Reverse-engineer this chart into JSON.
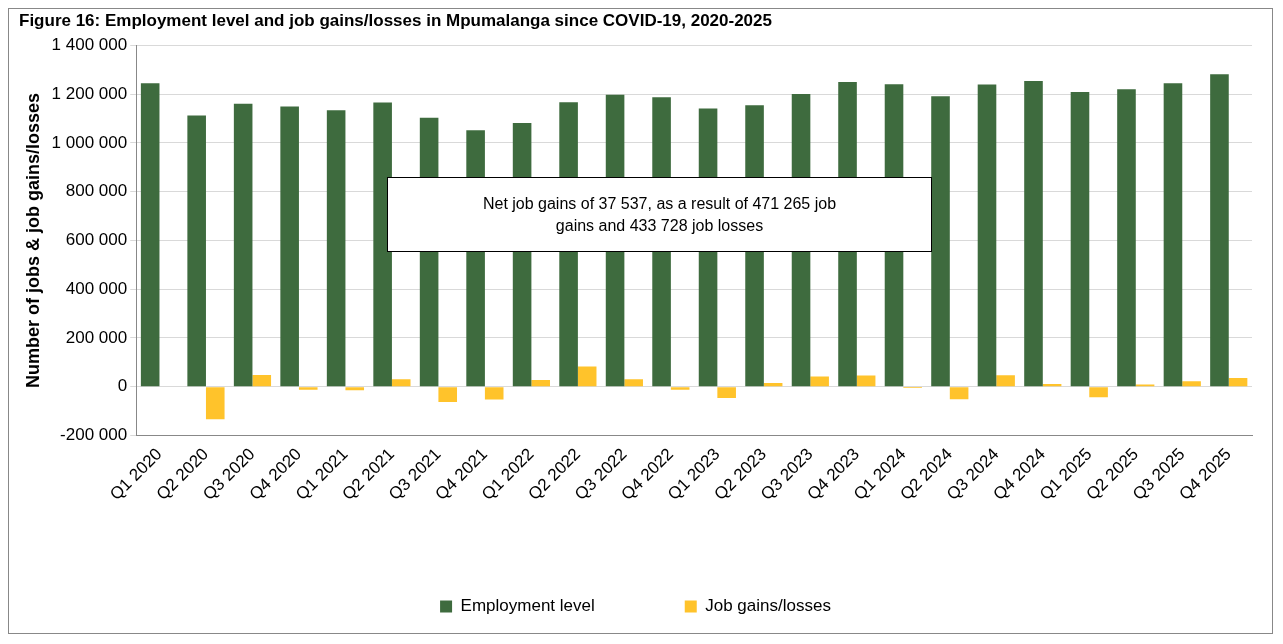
{
  "chart_data": {
    "type": "bar",
    "title": "Figure 16: Employment level and job gains/losses in Mpumalanga since COVID-19, 2020-2025",
    "ylabel": "Number of jobs & job gains/losses",
    "categories": [
      "Q1 2020",
      "Q2 2020",
      "Q3 2020",
      "Q4 2020",
      "Q1 2021",
      "Q2 2021",
      "Q3 2021",
      "Q4 2021",
      "Q1 2022",
      "Q2 2022",
      "Q3 2022",
      "Q4 2022",
      "Q1 2023",
      "Q2 2023",
      "Q3 2023",
      "Q4 2023",
      "Q1 2024",
      "Q2 2024",
      "Q3 2024",
      "Q4 2024",
      "Q1 2025",
      "Q2 2025",
      "Q3 2025",
      "Q4 2025"
    ],
    "series": [
      {
        "name": "Employment level",
        "color": "#3e6b3e",
        "values": [
          1245000,
          1112000,
          1161000,
          1149000,
          1134000,
          1166000,
          1103000,
          1052000,
          1082000,
          1167000,
          1198000,
          1187000,
          1141000,
          1155000,
          1201000,
          1250000,
          1241000,
          1191000,
          1240000,
          1254000,
          1209000,
          1220000,
          1245000,
          1282000
        ]
      },
      {
        "name": "Job gains/losses",
        "color": "#ffc32b",
        "values": [
          null,
          -134000,
          48000,
          -13000,
          -15000,
          31000,
          -63000,
          -52000,
          28000,
          83000,
          31000,
          -13000,
          -46000,
          15000,
          42000,
          46000,
          -5000,
          -51000,
          47000,
          11000,
          -43000,
          9000,
          22000,
          36000
        ]
      }
    ],
    "ylim": [
      -200000,
      1400000
    ],
    "yticks": [
      {
        "value": -200000,
        "label": "-200 000"
      },
      {
        "value": 0,
        "label": "0"
      },
      {
        "value": 200000,
        "label": "200 000"
      },
      {
        "value": 400000,
        "label": "400 000"
      },
      {
        "value": 600000,
        "label": "600 000"
      },
      {
        "value": 800000,
        "label": "800 000"
      },
      {
        "value": 1000000,
        "label": "1 000 000"
      },
      {
        "value": 1200000,
        "label": "1 200 000"
      },
      {
        "value": 1400000,
        "label": "1 400 000"
      }
    ],
    "grid": "y",
    "legend": "bottom",
    "annotations": [
      "Net job gains of 37 537, as a result of 471 265 job gains and 433 728 job losses"
    ]
  }
}
